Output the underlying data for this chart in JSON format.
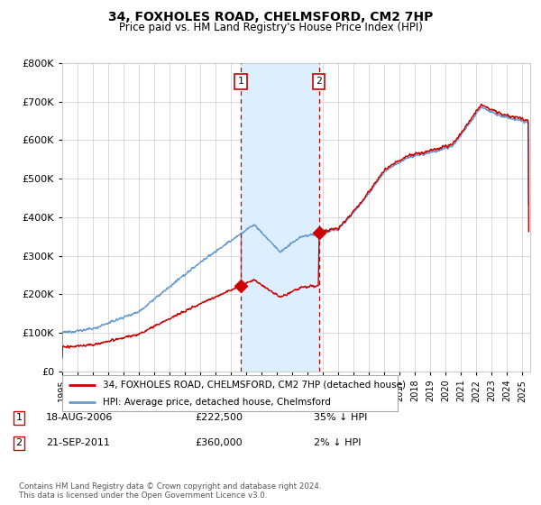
{
  "title": "34, FOXHOLES ROAD, CHELMSFORD, CM2 7HP",
  "subtitle": "Price paid vs. HM Land Registry's House Price Index (HPI)",
  "x_start": 1995.0,
  "x_end": 2025.5,
  "y_min": 0,
  "y_max": 800000,
  "y_ticks": [
    0,
    100000,
    200000,
    300000,
    400000,
    500000,
    600000,
    700000,
    800000
  ],
  "y_tick_labels": [
    "£0",
    "£100K",
    "£200K",
    "£300K",
    "£400K",
    "£500K",
    "£600K",
    "£700K",
    "£800K"
  ],
  "transaction1_date": 2006.63,
  "transaction1_price": 222500,
  "transaction1_label": "1",
  "transaction2_date": 2011.73,
  "transaction2_price": 360000,
  "transaction2_label": "2",
  "shade_x1": 2006.63,
  "shade_x2": 2011.73,
  "hpi_color": "#6699cc",
  "price_color": "#cc0000",
  "shade_color": "#ddeeff",
  "grid_color": "#cccccc",
  "bg_color": "#ffffff",
  "legend_label1": "34, FOXHOLES ROAD, CHELMSFORD, CM2 7HP (detached house)",
  "legend_label2": "HPI: Average price, detached house, Chelmsford",
  "footnote": "Contains HM Land Registry data © Crown copyright and database right 2024.\nThis data is licensed under the Open Government Licence v3.0.",
  "x_tick_years": [
    1995,
    1996,
    1997,
    1998,
    1999,
    2000,
    2001,
    2002,
    2003,
    2004,
    2005,
    2006,
    2007,
    2008,
    2009,
    2010,
    2011,
    2012,
    2013,
    2014,
    2015,
    2016,
    2017,
    2018,
    2019,
    2020,
    2021,
    2022,
    2023,
    2024,
    2025
  ],
  "table_row1": [
    "1",
    "18-AUG-2006",
    "£222,500",
    "35% ↓ HPI"
  ],
  "table_row2": [
    "2",
    "21-SEP-2011",
    "£360,000",
    "2% ↓ HPI"
  ]
}
